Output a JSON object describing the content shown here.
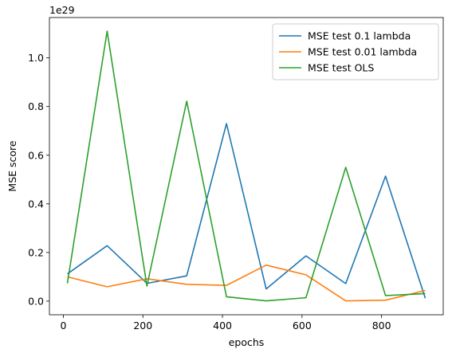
{
  "chart_data": {
    "type": "line",
    "xlabel": "epochs",
    "ylabel": "MSE score",
    "offset_label": "1e29",
    "xlim": [
      -35,
      955
    ],
    "ylim": [
      -0.056,
      1.166
    ],
    "x_ticks": [
      0,
      200,
      400,
      600,
      800
    ],
    "x_tick_labels": [
      "0",
      "200",
      "400",
      "600",
      "800"
    ],
    "y_ticks": [
      0.0,
      0.2,
      0.4,
      0.6,
      0.8,
      1.0
    ],
    "y_tick_labels": [
      "0.0",
      "0.2",
      "0.4",
      "0.6",
      "0.8",
      "1.0"
    ],
    "x": [
      10,
      110,
      210,
      310,
      410,
      510,
      610,
      710,
      810,
      910
    ],
    "series": [
      {
        "name": "MSE test 0.1 lambda",
        "color": "#1f77b4",
        "values": [
          0.112,
          0.228,
          0.073,
          0.104,
          0.73,
          0.05,
          0.186,
          0.072,
          0.514,
          0.012
        ]
      },
      {
        "name": "MSE test 0.01 lambda",
        "color": "#ff7f0e",
        "values": [
          0.1,
          0.059,
          0.092,
          0.069,
          0.065,
          0.148,
          0.108,
          0.001,
          0.004,
          0.044
        ]
      },
      {
        "name": "MSE test OLS",
        "color": "#2ca02c",
        "values": [
          0.073,
          1.11,
          0.062,
          0.822,
          0.018,
          0.001,
          0.014,
          0.55,
          0.023,
          0.031
        ]
      }
    ],
    "grid": false,
    "legend_position": "top-right"
  }
}
